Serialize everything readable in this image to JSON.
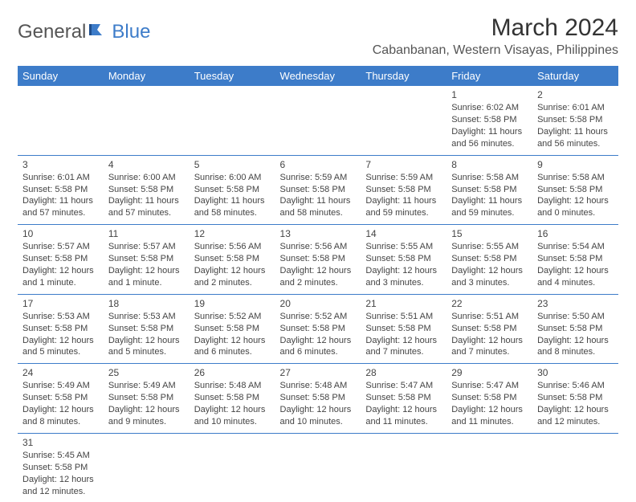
{
  "logo": {
    "general": "General",
    "blue": "Blue"
  },
  "title": "March 2024",
  "location": "Cabanbanan, Western Visayas, Philippines",
  "colors": {
    "header_bg": "#3d7cc9",
    "header_text": "#ffffff",
    "body_text": "#444444",
    "border": "#3d7cc9",
    "background": "#ffffff"
  },
  "typography": {
    "title_fontsize": 30,
    "location_fontsize": 16,
    "header_fontsize": 13,
    "cell_fontsize": 11,
    "daynum_fontsize": 12
  },
  "day_headers": [
    "Sunday",
    "Monday",
    "Tuesday",
    "Wednesday",
    "Thursday",
    "Friday",
    "Saturday"
  ],
  "weeks": [
    [
      null,
      null,
      null,
      null,
      null,
      {
        "n": "1",
        "sunrise": "Sunrise: 6:02 AM",
        "sunset": "Sunset: 5:58 PM",
        "daylight": "Daylight: 11 hours and 56 minutes."
      },
      {
        "n": "2",
        "sunrise": "Sunrise: 6:01 AM",
        "sunset": "Sunset: 5:58 PM",
        "daylight": "Daylight: 11 hours and 56 minutes."
      }
    ],
    [
      {
        "n": "3",
        "sunrise": "Sunrise: 6:01 AM",
        "sunset": "Sunset: 5:58 PM",
        "daylight": "Daylight: 11 hours and 57 minutes."
      },
      {
        "n": "4",
        "sunrise": "Sunrise: 6:00 AM",
        "sunset": "Sunset: 5:58 PM",
        "daylight": "Daylight: 11 hours and 57 minutes."
      },
      {
        "n": "5",
        "sunrise": "Sunrise: 6:00 AM",
        "sunset": "Sunset: 5:58 PM",
        "daylight": "Daylight: 11 hours and 58 minutes."
      },
      {
        "n": "6",
        "sunrise": "Sunrise: 5:59 AM",
        "sunset": "Sunset: 5:58 PM",
        "daylight": "Daylight: 11 hours and 58 minutes."
      },
      {
        "n": "7",
        "sunrise": "Sunrise: 5:59 AM",
        "sunset": "Sunset: 5:58 PM",
        "daylight": "Daylight: 11 hours and 59 minutes."
      },
      {
        "n": "8",
        "sunrise": "Sunrise: 5:58 AM",
        "sunset": "Sunset: 5:58 PM",
        "daylight": "Daylight: 11 hours and 59 minutes."
      },
      {
        "n": "9",
        "sunrise": "Sunrise: 5:58 AM",
        "sunset": "Sunset: 5:58 PM",
        "daylight": "Daylight: 12 hours and 0 minutes."
      }
    ],
    [
      {
        "n": "10",
        "sunrise": "Sunrise: 5:57 AM",
        "sunset": "Sunset: 5:58 PM",
        "daylight": "Daylight: 12 hours and 1 minute."
      },
      {
        "n": "11",
        "sunrise": "Sunrise: 5:57 AM",
        "sunset": "Sunset: 5:58 PM",
        "daylight": "Daylight: 12 hours and 1 minute."
      },
      {
        "n": "12",
        "sunrise": "Sunrise: 5:56 AM",
        "sunset": "Sunset: 5:58 PM",
        "daylight": "Daylight: 12 hours and 2 minutes."
      },
      {
        "n": "13",
        "sunrise": "Sunrise: 5:56 AM",
        "sunset": "Sunset: 5:58 PM",
        "daylight": "Daylight: 12 hours and 2 minutes."
      },
      {
        "n": "14",
        "sunrise": "Sunrise: 5:55 AM",
        "sunset": "Sunset: 5:58 PM",
        "daylight": "Daylight: 12 hours and 3 minutes."
      },
      {
        "n": "15",
        "sunrise": "Sunrise: 5:55 AM",
        "sunset": "Sunset: 5:58 PM",
        "daylight": "Daylight: 12 hours and 3 minutes."
      },
      {
        "n": "16",
        "sunrise": "Sunrise: 5:54 AM",
        "sunset": "Sunset: 5:58 PM",
        "daylight": "Daylight: 12 hours and 4 minutes."
      }
    ],
    [
      {
        "n": "17",
        "sunrise": "Sunrise: 5:53 AM",
        "sunset": "Sunset: 5:58 PM",
        "daylight": "Daylight: 12 hours and 5 minutes."
      },
      {
        "n": "18",
        "sunrise": "Sunrise: 5:53 AM",
        "sunset": "Sunset: 5:58 PM",
        "daylight": "Daylight: 12 hours and 5 minutes."
      },
      {
        "n": "19",
        "sunrise": "Sunrise: 5:52 AM",
        "sunset": "Sunset: 5:58 PM",
        "daylight": "Daylight: 12 hours and 6 minutes."
      },
      {
        "n": "20",
        "sunrise": "Sunrise: 5:52 AM",
        "sunset": "Sunset: 5:58 PM",
        "daylight": "Daylight: 12 hours and 6 minutes."
      },
      {
        "n": "21",
        "sunrise": "Sunrise: 5:51 AM",
        "sunset": "Sunset: 5:58 PM",
        "daylight": "Daylight: 12 hours and 7 minutes."
      },
      {
        "n": "22",
        "sunrise": "Sunrise: 5:51 AM",
        "sunset": "Sunset: 5:58 PM",
        "daylight": "Daylight: 12 hours and 7 minutes."
      },
      {
        "n": "23",
        "sunrise": "Sunrise: 5:50 AM",
        "sunset": "Sunset: 5:58 PM",
        "daylight": "Daylight: 12 hours and 8 minutes."
      }
    ],
    [
      {
        "n": "24",
        "sunrise": "Sunrise: 5:49 AM",
        "sunset": "Sunset: 5:58 PM",
        "daylight": "Daylight: 12 hours and 8 minutes."
      },
      {
        "n": "25",
        "sunrise": "Sunrise: 5:49 AM",
        "sunset": "Sunset: 5:58 PM",
        "daylight": "Daylight: 12 hours and 9 minutes."
      },
      {
        "n": "26",
        "sunrise": "Sunrise: 5:48 AM",
        "sunset": "Sunset: 5:58 PM",
        "daylight": "Daylight: 12 hours and 10 minutes."
      },
      {
        "n": "27",
        "sunrise": "Sunrise: 5:48 AM",
        "sunset": "Sunset: 5:58 PM",
        "daylight": "Daylight: 12 hours and 10 minutes."
      },
      {
        "n": "28",
        "sunrise": "Sunrise: 5:47 AM",
        "sunset": "Sunset: 5:58 PM",
        "daylight": "Daylight: 12 hours and 11 minutes."
      },
      {
        "n": "29",
        "sunrise": "Sunrise: 5:47 AM",
        "sunset": "Sunset: 5:58 PM",
        "daylight": "Daylight: 12 hours and 11 minutes."
      },
      {
        "n": "30",
        "sunrise": "Sunrise: 5:46 AM",
        "sunset": "Sunset: 5:58 PM",
        "daylight": "Daylight: 12 hours and 12 minutes."
      }
    ],
    [
      {
        "n": "31",
        "sunrise": "Sunrise: 5:45 AM",
        "sunset": "Sunset: 5:58 PM",
        "daylight": "Daylight: 12 hours and 12 minutes."
      },
      null,
      null,
      null,
      null,
      null,
      null
    ]
  ]
}
